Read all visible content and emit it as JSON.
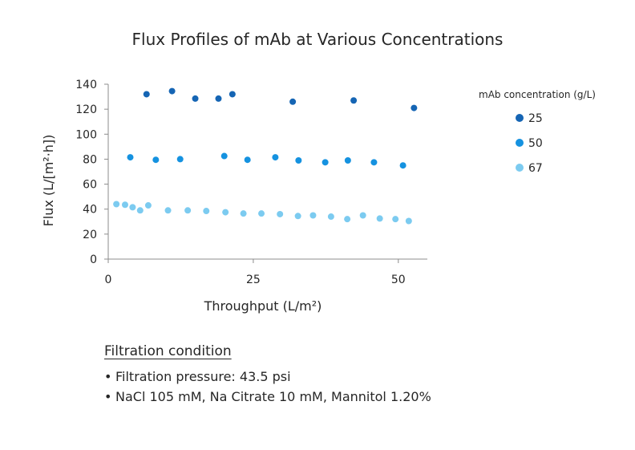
{
  "chart_data": {
    "type": "scatter",
    "title": "Flux Profiles of mAb at Various Concentrations",
    "xlabel": "Throughput (L/m²)",
    "ylabel": "Flux (L/[m²·h])",
    "xlim": [
      0,
      55
    ],
    "ylim": [
      0,
      140
    ],
    "xticks": [
      0,
      25,
      50
    ],
    "yticks": [
      0,
      20,
      40,
      60,
      80,
      100,
      120,
      140
    ],
    "legend_title": "mAb concentration (g/L)",
    "legend_position": "right",
    "series": [
      {
        "name": "25",
        "color": "#1565b4",
        "points": [
          [
            6.6,
            132
          ],
          [
            11,
            134.5
          ],
          [
            15,
            128.5
          ],
          [
            19,
            128.5
          ],
          [
            21.4,
            132
          ],
          [
            31.8,
            126
          ],
          [
            42.3,
            127
          ],
          [
            52.7,
            121
          ]
        ]
      },
      {
        "name": "50",
        "color": "#1592e0",
        "points": [
          [
            3.8,
            81.5
          ],
          [
            8.2,
            79.5
          ],
          [
            12.4,
            80
          ],
          [
            20,
            82.5
          ],
          [
            24,
            79.5
          ],
          [
            28.8,
            81.5
          ],
          [
            32.8,
            79
          ],
          [
            37.4,
            77.5
          ],
          [
            41.3,
            79
          ],
          [
            45.8,
            77.5
          ],
          [
            50.8,
            75
          ]
        ]
      },
      {
        "name": "67",
        "color": "#7ccbf0",
        "points": [
          [
            1.4,
            44
          ],
          [
            2.9,
            43.5
          ],
          [
            4.2,
            41.5
          ],
          [
            5.5,
            39
          ],
          [
            6.9,
            43
          ],
          [
            10.3,
            39
          ],
          [
            13.7,
            39
          ],
          [
            16.9,
            38.5
          ],
          [
            20.2,
            37.5
          ],
          [
            23.3,
            36.5
          ],
          [
            26.4,
            36.5
          ],
          [
            29.6,
            36
          ],
          [
            32.7,
            34.5
          ],
          [
            35.3,
            35
          ],
          [
            38.4,
            34
          ],
          [
            41.2,
            32
          ],
          [
            43.9,
            35
          ],
          [
            46.8,
            32.5
          ],
          [
            49.5,
            32
          ],
          [
            51.8,
            30.5
          ]
        ]
      }
    ]
  },
  "notes": {
    "heading": "Filtration condition",
    "bullet": "•",
    "items": [
      "Filtration pressure: 43.5 psi",
      "NaCl 105 mM, Na Citrate 10 mM, Mannitol 1.20%"
    ]
  }
}
